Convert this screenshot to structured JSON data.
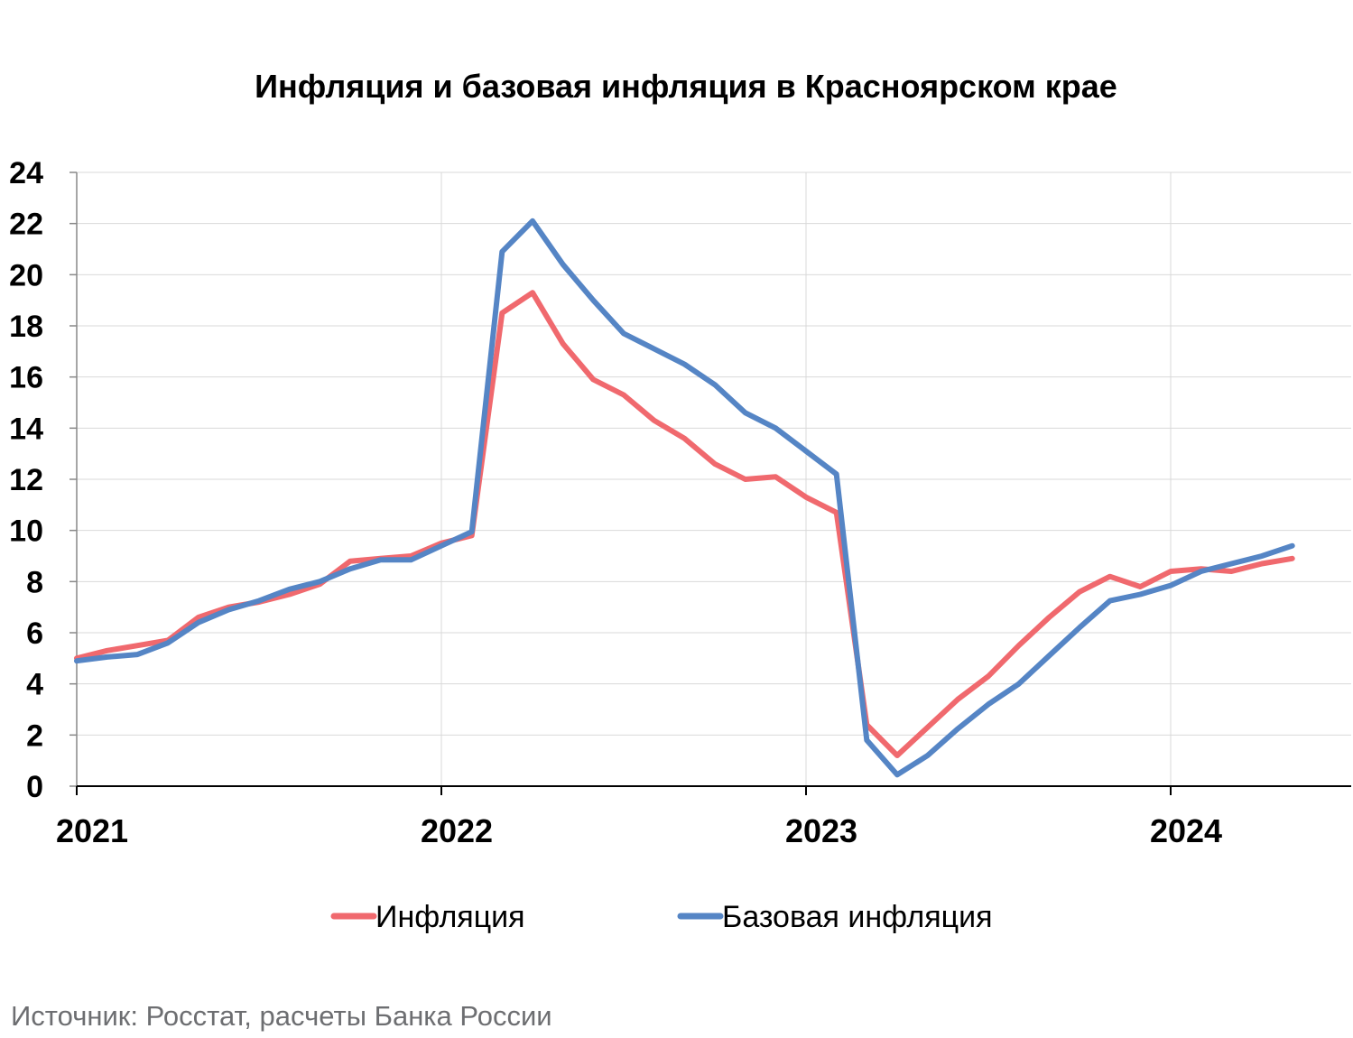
{
  "chart_data": {
    "type": "line",
    "title": "Инфляция и базовая инфляция в Красноярском крае",
    "xlabel": "",
    "ylabel": "",
    "ylim": [
      0,
      24
    ],
    "y_ticks": [
      "0",
      "2",
      "4",
      "6",
      "8",
      "10",
      "12",
      "14",
      "16",
      "18",
      "20",
      "22",
      "24"
    ],
    "x_ticks": [
      "2021",
      "2022",
      "2023",
      "2024"
    ],
    "x": [
      "2021-01",
      "2021-02",
      "2021-03",
      "2021-04",
      "2021-05",
      "2021-06",
      "2021-07",
      "2021-08",
      "2021-09",
      "2021-10",
      "2021-11",
      "2021-12",
      "2022-01",
      "2022-02",
      "2022-03",
      "2022-04",
      "2022-05",
      "2022-06",
      "2022-07",
      "2022-08",
      "2022-09",
      "2022-10",
      "2022-11",
      "2022-12",
      "2023-01",
      "2023-02",
      "2023-03",
      "2023-04",
      "2023-05",
      "2023-06",
      "2023-07",
      "2023-08",
      "2023-09",
      "2023-10",
      "2023-11",
      "2023-12",
      "2024-01",
      "2024-02",
      "2024-03",
      "2024-04",
      "2024-05"
    ],
    "grid": true,
    "legend_position": "bottom",
    "series": [
      {
        "name": "Инфляция",
        "color": "#f0696e",
        "values": [
          5.0,
          5.3,
          5.5,
          5.7,
          6.6,
          7.0,
          7.2,
          7.5,
          7.9,
          8.8,
          8.9,
          9.0,
          9.5,
          9.8,
          18.5,
          19.3,
          17.3,
          15.9,
          15.3,
          14.3,
          13.6,
          12.6,
          12.0,
          12.1,
          11.3,
          10.7,
          2.4,
          1.2,
          2.3,
          3.4,
          4.3,
          5.5,
          6.6,
          7.6,
          8.2,
          7.8,
          8.4,
          8.5,
          8.4,
          8.7,
          8.9
        ]
      },
      {
        "name": "Базовая инфляция",
        "color": "#5585c5",
        "values": [
          4.9,
          5.05,
          5.15,
          5.6,
          6.4,
          6.9,
          7.25,
          7.7,
          8.0,
          8.5,
          8.85,
          8.85,
          9.4,
          9.95,
          20.9,
          22.1,
          20.4,
          19.0,
          17.7,
          17.1,
          16.5,
          15.7,
          14.6,
          14.0,
          13.1,
          12.2,
          1.8,
          0.45,
          1.2,
          2.25,
          3.2,
          4.0,
          5.1,
          6.2,
          7.25,
          7.5,
          7.85,
          8.4,
          8.7,
          9.0,
          9.4
        ]
      }
    ]
  },
  "source": "Источник: Росстат, расчеты Банка России"
}
